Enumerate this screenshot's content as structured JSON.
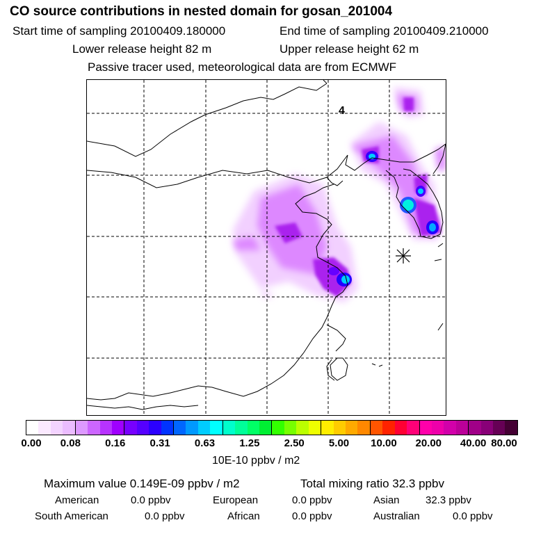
{
  "header": {
    "title": "CO  source contributions in nested domain for gosan_201004",
    "start_time": "Start time of sampling 20100409.180000",
    "end_time": "End time of sampling 20100409.210000",
    "lower_height": "Lower release height   82 m",
    "upper_height": "Upper release height   62 m",
    "note": "Passive tracer used, meteorological data are from ECMWF"
  },
  "map": {
    "label": "4",
    "site_marker": "asterisk-icon",
    "plume_colors": {
      "light": "#f0c8ff",
      "medium": "#dd88ff",
      "strong": "#aa22ee",
      "core": "#4400ff",
      "peak": "#00e0ff"
    }
  },
  "colorbar": {
    "colors": [
      "#ffffff",
      "#fbe9ff",
      "#f3d3ff",
      "#ebbcff",
      "#dd99ff",
      "#cc66ff",
      "#b733ff",
      "#9f00ff",
      "#7700ff",
      "#5500ff",
      "#2b00ff",
      "#0033ff",
      "#0066ff",
      "#0099ff",
      "#00ccff",
      "#00ffff",
      "#00ffcc",
      "#00ff99",
      "#00ff66",
      "#00ee33",
      "#33ff00",
      "#77ff00",
      "#bbff00",
      "#eeff00",
      "#ffee00",
      "#ffcc00",
      "#ffaa00",
      "#ff8800",
      "#ff5500",
      "#ff2200",
      "#ff0033",
      "#ff0077",
      "#ff00aa",
      "#ee00aa",
      "#d200aa",
      "#bb0099",
      "#a00088",
      "#880077",
      "#660055",
      "#440033"
    ],
    "ticks": [
      "0.00",
      "0.08",
      "0.16",
      "0.31",
      "0.63",
      "1.25",
      "2.50",
      "5.00",
      "10.00",
      "20.00",
      "40.00",
      "80.00"
    ],
    "units": "10E-10 ppbv / m2"
  },
  "summary": {
    "max_value": "Maximum value  0.149E-09 ppbv / m2",
    "total_mixing": "Total mixing ratio       32.3 ppbv",
    "sources": [
      {
        "name": "American",
        "value": "0.0 ppbv"
      },
      {
        "name": "European",
        "value": "0.0 ppbv"
      },
      {
        "name": "Asian",
        "value": "32.3 ppbv"
      },
      {
        "name": "South American",
        "value": "0.0 ppbv"
      },
      {
        "name": "African",
        "value": "0.0 ppbv"
      },
      {
        "name": "Australian",
        "value": "0.0 ppbv"
      }
    ]
  }
}
